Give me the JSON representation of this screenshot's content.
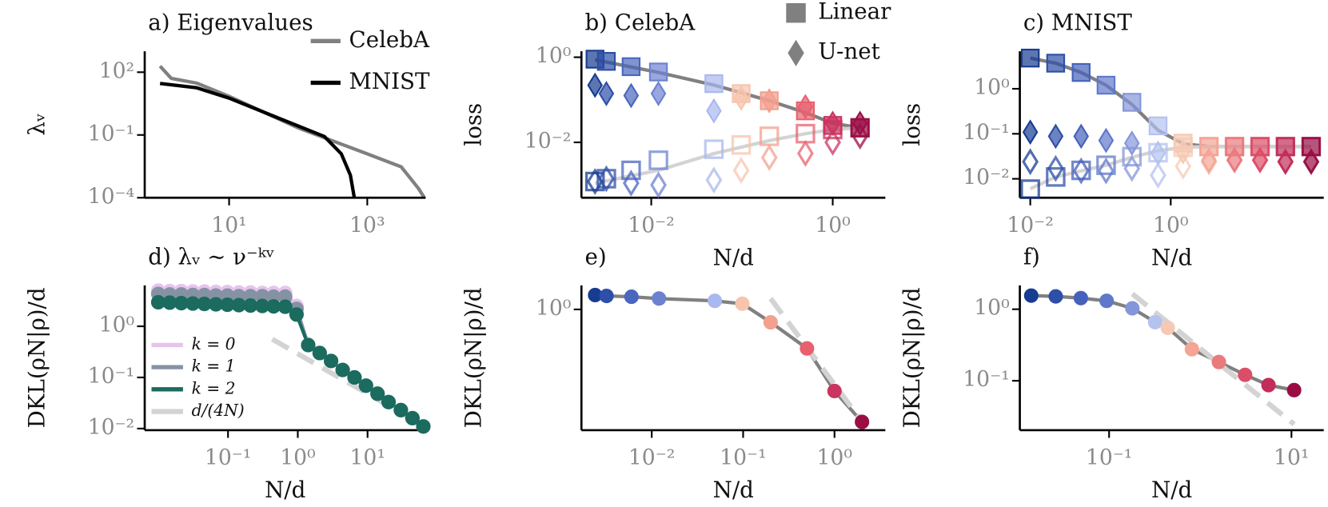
{
  "chart_data": [
    {
      "type": "line",
      "title": "a) Eigenvalues",
      "ylabel": "λᵥ",
      "xlog": true,
      "ylog": true,
      "xlim": [
        0.6,
        7000
      ],
      "ylim": [
        0.0001,
        1000
      ],
      "xticks": [
        {
          "value": 10,
          "label": "10¹"
        },
        {
          "value": 1000,
          "label": "10³"
        }
      ],
      "yticks": [
        {
          "value": 0.0001,
          "label": "10⁻⁴"
        },
        {
          "value": 0.1,
          "label": "10⁻¹"
        },
        {
          "value": 100,
          "label": "10²"
        }
      ],
      "legend": "upper right",
      "series": [
        {
          "name": "CelebA",
          "color": "#808080",
          "x": [
            1,
            1.45,
            3.4,
            10,
            103,
            1000,
            3100,
            5500,
            6700
          ],
          "values": [
            195,
            51,
            30,
            7,
            0.21,
            0.0126,
            0.003,
            0.00028,
            0.0001
          ]
        },
        {
          "name": "MNIST",
          "color": "#000000",
          "x": [
            1,
            3.4,
            10,
            58,
            240,
            420,
            570,
            650
          ],
          "values": [
            29,
            18,
            5.8,
            0.55,
            0.084,
            0.0126,
            0.0012,
            0.0001
          ]
        }
      ]
    },
    {
      "type": "scatter",
      "title": "b) CelebA",
      "xlabel": "N/d",
      "ylabel": "loss",
      "xlog": true,
      "ylog": true,
      "xlim": [
        0.0017,
        3.8
      ],
      "ylim": [
        0.0005,
        1.38
      ],
      "xticks": [
        {
          "value": 0.01,
          "label": "10⁻²"
        },
        {
          "value": 1,
          "label": "10⁰"
        }
      ],
      "yticks": [
        {
          "value": 0.01,
          "label": "10⁻²"
        },
        {
          "value": 1,
          "label": "10⁰"
        }
      ],
      "x": [
        0.0024,
        0.0032,
        0.006,
        0.012,
        0.049,
        0.098,
        0.2,
        0.5,
        1,
        2
      ],
      "colors": [
        "#173c91",
        "#2d4fa8",
        "#4a66bf",
        "#6c82d1",
        "#a9b8ee",
        "#f7c4ae",
        "#f3a08f",
        "#e8616f",
        "#cb3460",
        "#9a0e45"
      ],
      "legend_entries": [
        {
          "label": "Linear",
          "marker": "square"
        },
        {
          "label": "U-net",
          "marker": "diamond"
        }
      ],
      "legend_color": "#808080",
      "series": [
        {
          "color": "#808080",
          "x": [
            0.0024,
            0.012,
            0.05,
            0.2,
            0.5,
            1,
            2
          ],
          "values": [
            0.87,
            0.44,
            0.22,
            0.095,
            0.05,
            0.028,
            0.022
          ]
        },
        {
          "color": "#d3d3d3",
          "x": [
            0.0024,
            0.012,
            0.05,
            0.2,
            0.5,
            1,
            2
          ],
          "values": [
            0.0011,
            0.0022,
            0.0055,
            0.011,
            0.016,
            0.02,
            0.022
          ]
        },
        {
          "marker": "square",
          "filled": true,
          "values": [
            0.9,
            0.8,
            0.6,
            0.45,
            0.24,
            0.14,
            0.095,
            0.055,
            0.025,
            0.022
          ]
        },
        {
          "marker": "square",
          "filled": false,
          "values": [
            0.0012,
            0.0014,
            0.0022,
            0.0038,
            0.0069,
            0.0087,
            0.0139,
            0.016,
            0.02,
            0.022
          ]
        },
        {
          "marker": "diamond",
          "filled": true,
          "values": [
            0.22,
            0.14,
            0.126,
            0.14,
            0.055,
            0.11,
            0.095,
            0.069,
            0.028,
            0.028
          ]
        },
        {
          "marker": "diamond",
          "filled": false,
          "values": [
            0.0012,
            0.0014,
            0.0011,
            0.001,
            0.0013,
            0.0022,
            0.0044,
            0.0055,
            0.01,
            0.014
          ]
        }
      ]
    },
    {
      "type": "scatter",
      "title": "c) MNIST",
      "xlabel": "N/d",
      "ylabel": "loss",
      "xlog": true,
      "ylog": true,
      "xlim": [
        0.0071,
        151
      ],
      "ylim": [
        0.0038,
        6.8
      ],
      "xticks": [
        {
          "value": 0.01,
          "label": "10⁻²"
        },
        {
          "value": 1,
          "label": "10⁰"
        }
      ],
      "yticks": [
        {
          "value": 0.01,
          "label": "10⁻²"
        },
        {
          "value": 0.1,
          "label": "10⁻¹"
        },
        {
          "value": 1,
          "label": "10⁰"
        }
      ],
      "x": [
        0.01,
        0.023,
        0.053,
        0.12,
        0.28,
        0.66,
        1.5,
        3.5,
        8.1,
        18.7,
        43,
        100
      ],
      "colors": [
        "#173c91",
        "#2d4fa8",
        "#4561bb",
        "#5f78ca",
        "#8396da",
        "#b4c2ef",
        "#f6c9b4",
        "#f4a595",
        "#eb7a7d",
        "#db4e67",
        "#c22d5a",
        "#990d45"
      ],
      "series": [
        {
          "color": "#808080",
          "x": [
            0.01,
            0.023,
            0.053,
            0.12,
            0.28,
            0.66,
            1.5,
            3.5,
            100
          ],
          "values": [
            4.8,
            3.7,
            2.3,
            1.2,
            0.45,
            0.12,
            0.06,
            0.052,
            0.052
          ]
        },
        {
          "color": "#d3d3d3",
          "x": [
            0.01,
            0.023,
            0.053,
            0.12,
            0.28,
            0.66,
            1.5,
            3.5,
            100
          ],
          "values": [
            0.006,
            0.011,
            0.015,
            0.02,
            0.03,
            0.042,
            0.05,
            0.052,
            0.052
          ]
        },
        {
          "marker": "square",
          "filled": true,
          "values": [
            4.8,
            3.7,
            2.3,
            1.2,
            0.5,
            0.15,
            0.062,
            0.052,
            0.052,
            0.052,
            0.052,
            0.052
          ]
        },
        {
          "marker": "square",
          "filled": false,
          "values": [
            0.0059,
            0.011,
            0.0154,
            0.02,
            0.031,
            0.038,
            0.05,
            0.052,
            0.052,
            0.052,
            0.052,
            0.052
          ]
        },
        {
          "marker": "diamond",
          "filled": true,
          "values": [
            0.109,
            0.088,
            0.088,
            0.071,
            0.062,
            0.037,
            0.04,
            0.026,
            0.026,
            0.026,
            0.024,
            0.024
          ]
        },
        {
          "marker": "diamond",
          "filled": false,
          "values": [
            0.024,
            0.017,
            0.015,
            0.015,
            0.017,
            0.012,
            0.019,
            0.024,
            0.026,
            0.026,
            0.024,
            0.024
          ]
        }
      ]
    },
    {
      "type": "line",
      "title": "d) λᵥ ∼ ν⁻ᵏᵛ",
      "xlabel": "N/d",
      "ylabel": "DKL(ρN|ρ)/d",
      "xlog": true,
      "ylog": true,
      "xlim": [
        0.0064,
        68
      ],
      "ylim": [
        0.0093,
        6.3
      ],
      "xticks": [
        {
          "value": 0.1,
          "label": "10⁻¹"
        },
        {
          "value": 1,
          "label": "10⁰"
        },
        {
          "value": 10,
          "label": "10¹"
        }
      ],
      "yticks": [
        {
          "value": 0.01,
          "label": "10⁻²"
        },
        {
          "value": 0.1,
          "label": "10⁻¹"
        },
        {
          "value": 1,
          "label": "10⁰"
        }
      ],
      "legend": "lower left",
      "x": [
        0.01,
        0.0146,
        0.0214,
        0.0313,
        0.0458,
        0.067,
        0.098,
        0.143,
        0.21,
        0.31,
        0.45,
        0.66,
        0.96,
        1.41,
        2.06,
        3.0,
        4.4,
        6.5,
        9.5,
        13.9,
        20,
        30,
        44,
        63
      ],
      "series": [
        {
          "name": "k = 0",
          "color": "#e6c4ee",
          "marker": "circle",
          "line": true,
          "values": [
            5.0,
            4.9,
            4.9,
            4.8,
            4.8,
            4.7,
            4.7,
            4.6,
            4.6,
            4.5,
            4.5,
            4.5,
            2.5,
            0.43,
            0.3,
            0.21,
            0.14,
            0.1,
            0.069,
            0.048,
            0.033,
            0.023,
            0.016,
            0.011
          ]
        },
        {
          "name": "k = 1",
          "color": "#8592a3",
          "marker": "circle",
          "line": true,
          "values": [
            4.3,
            4.2,
            4.2,
            4.1,
            4.1,
            4.0,
            4.0,
            3.9,
            3.9,
            3.9,
            3.8,
            3.8,
            2.2,
            0.43,
            0.3,
            0.21,
            0.14,
            0.1,
            0.069,
            0.048,
            0.033,
            0.023,
            0.016,
            0.011
          ]
        },
        {
          "name": "k = 2",
          "color": "#1b6b5f",
          "marker": "circle",
          "line": true,
          "values": [
            2.95,
            2.9,
            2.84,
            2.79,
            2.74,
            2.69,
            2.64,
            2.59,
            2.55,
            2.5,
            2.45,
            2.41,
            1.7,
            0.43,
            0.3,
            0.21,
            0.14,
            0.1,
            0.069,
            0.048,
            0.033,
            0.023,
            0.016,
            0.011
          ]
        },
        {
          "name": "d/(4N)",
          "color": "#d3d3d3",
          "dash": true,
          "x": [
            0.43,
            51
          ],
          "values": [
            0.56,
            0.0135
          ]
        }
      ]
    },
    {
      "type": "scatter",
      "title": "e)",
      "xlabel": "N/d",
      "ylabel": "DKL(ρN|ρ)/d",
      "xlog": true,
      "ylog": true,
      "xlim": [
        0.0017,
        3.6
      ],
      "ylim": [
        0.11,
        1.55
      ],
      "xticks": [
        {
          "value": 0.01,
          "label": "10⁻²"
        },
        {
          "value": 0.1,
          "label": "10⁻¹"
        },
        {
          "value": 1,
          "label": "10⁰"
        }
      ],
      "yticks": [
        {
          "value": 1,
          "label": "10⁰"
        }
      ],
      "x": [
        0.0024,
        0.0032,
        0.006,
        0.012,
        0.049,
        0.098,
        0.2,
        0.5,
        1,
        2
      ],
      "colors": [
        "#173c91",
        "#2d4fa8",
        "#4a66bf",
        "#6c82d1",
        "#a9b8ee",
        "#f7c4ae",
        "#f3a08f",
        "#e8616f",
        "#cb3460",
        "#9a0e45"
      ],
      "series": [
        {
          "marker": "circle",
          "filled": true,
          "line": true,
          "line_color": "#808080",
          "values": [
            1.3,
            1.28,
            1.26,
            1.22,
            1.17,
            1.11,
            0.79,
            0.49,
            0.225,
            0.128
          ]
        },
        {
          "color": "#d3d3d3",
          "dash": true,
          "x": [
            0.2,
            1.95
          ],
          "values": [
            1.22,
            0.132
          ]
        }
      ]
    },
    {
      "type": "scatter",
      "title": "f)",
      "xlabel": "N/d",
      "ylabel": "DKL(ρN|ρ)/d",
      "xlog": true,
      "ylog": true,
      "xlim": [
        0.0105,
        22.6
      ],
      "ylim": [
        0.0204,
        2.15
      ],
      "xticks": [
        {
          "value": 0.1,
          "label": "10⁻¹"
        },
        {
          "value": 10,
          "label": "10¹"
        }
      ],
      "yticks": [
        {
          "value": 0.1,
          "label": "10⁻¹"
        },
        {
          "value": 1,
          "label": "10⁰"
        }
      ],
      "x": [
        0.014,
        0.026,
        0.049,
        0.094,
        0.18,
        0.32,
        0.44,
        0.81,
        1.6,
        3.1,
        5.6,
        10.7
      ],
      "colors": [
        "#173c91",
        "#2d4fa8",
        "#4561bb",
        "#5f78ca",
        "#8396da",
        "#b4c2ef",
        "#f6c9b4",
        "#f4a595",
        "#eb7a7d",
        "#db4e67",
        "#c22d5a",
        "#990d45"
      ],
      "series": [
        {
          "marker": "circle",
          "filled": true,
          "line": true,
          "line_color": "#808080",
          "values": [
            1.55,
            1.51,
            1.43,
            1.31,
            1.03,
            0.66,
            0.55,
            0.276,
            0.183,
            0.121,
            0.087,
            0.074
          ]
        },
        {
          "color": "#d3d3d3",
          "dash": true,
          "x": [
            0.18,
            10.7
          ],
          "values": [
            1.64,
            0.0247
          ]
        }
      ]
    }
  ]
}
